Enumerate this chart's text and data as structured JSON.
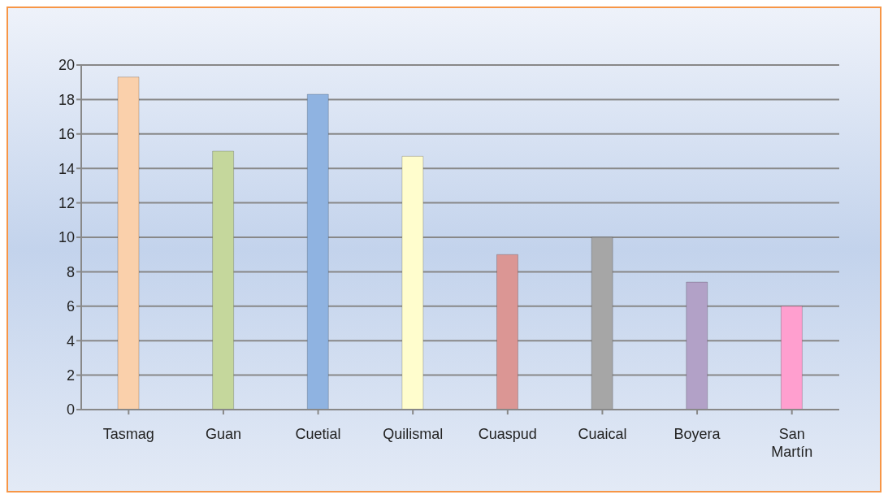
{
  "chart_data": {
    "type": "bar",
    "categories": [
      "Tasmag",
      "Guan",
      "Cuetial",
      "Quilismal",
      "Cuaspud",
      "Cuaical",
      "Boyera",
      "San Martín"
    ],
    "values": [
      19.3,
      15.0,
      18.3,
      14.7,
      9.0,
      10.0,
      7.4,
      6.0
    ],
    "colors": [
      "#fad0ab",
      "#c5d79c",
      "#8fb3e1",
      "#fffdcd",
      "#db9694",
      "#a6a6a6",
      "#b2a1c7",
      "#ff9fcf"
    ],
    "ylim": [
      0,
      20
    ],
    "yticks": [
      0,
      2,
      4,
      6,
      8,
      10,
      12,
      14,
      16,
      18,
      20
    ],
    "grid": "y"
  }
}
